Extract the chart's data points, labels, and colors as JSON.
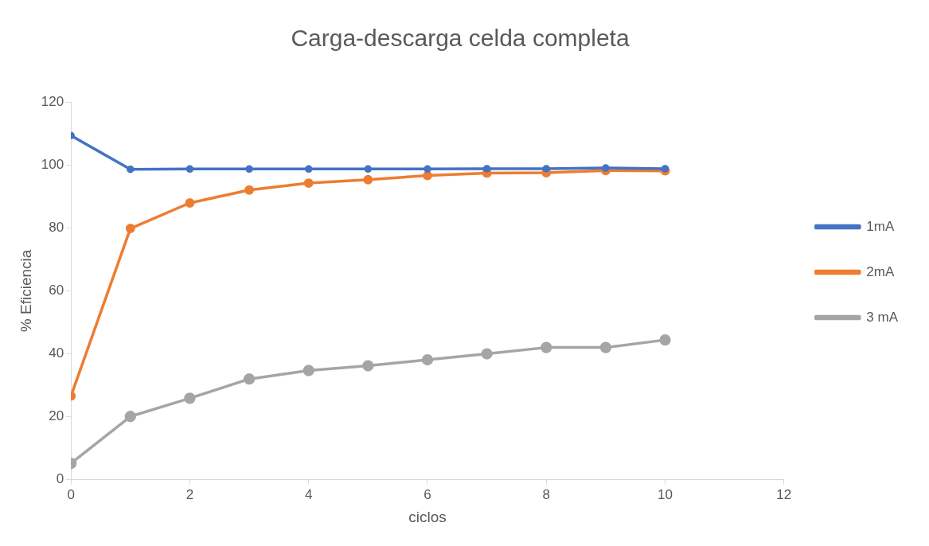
{
  "chart_data": {
    "type": "line",
    "title": "Carga-descarga celda completa",
    "xlabel": "ciclos",
    "ylabel": "% Eficiencia",
    "x": [
      0,
      1,
      2,
      3,
      4,
      5,
      6,
      7,
      8,
      9,
      10
    ],
    "series": [
      {
        "name": "1mA",
        "color": "#4472c4",
        "values": [
          109.3,
          98.6,
          98.7,
          98.7,
          98.7,
          98.7,
          98.7,
          98.8,
          98.8,
          99,
          98.8
        ]
      },
      {
        "name": "2mA",
        "color": "#ed7d31",
        "values": [
          26.6,
          79.8,
          87.9,
          92,
          94.2,
          95.3,
          96.6,
          97.4,
          97.5,
          98.2,
          98.1
        ]
      },
      {
        "name": "3 mA",
        "color": "#a5a5a5",
        "values": [
          5.2,
          20.1,
          25.9,
          32,
          34.7,
          36.2,
          38.1,
          40,
          42,
          42,
          44.4
        ]
      }
    ],
    "xlim": [
      0,
      12
    ],
    "xticks": [
      0,
      2,
      4,
      6,
      8,
      10,
      12
    ],
    "ylim": [
      0,
      120
    ],
    "yticks": [
      0,
      20,
      40,
      60,
      80,
      100,
      120
    ],
    "grid": false,
    "legend": "right",
    "marker": "circle",
    "line_style": "solid"
  }
}
